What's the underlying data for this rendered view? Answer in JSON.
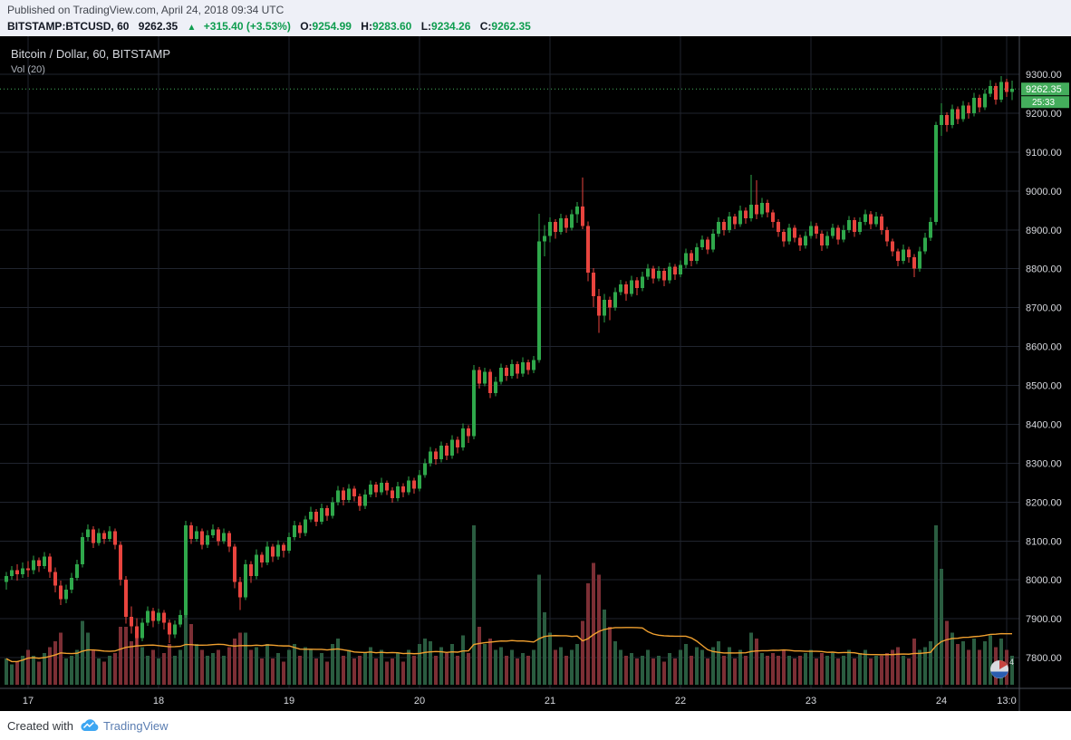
{
  "header": {
    "published": "Published on TradingView.com, April 24, 2018 09:34 UTC",
    "symbol": "BITSTAMP:BTCUSD, 60",
    "last_price": "9262.35",
    "up_arrow": "▲",
    "change": "+315.40 (+3.53%)",
    "ohlc": {
      "o_label": "O:",
      "o_value": "9254.99",
      "h_label": "H:",
      "h_value": "9283.60",
      "l_label": "L:",
      "l_value": "9234.26",
      "c_label": "C:",
      "c_value": "9262.35"
    },
    "colors": {
      "bg": "#eef0f7",
      "text_dark": "#121722",
      "quote_green": "#0e9d4f"
    }
  },
  "chart": {
    "legend_title": "Bitcoin / Dollar, 60, BITSTAMP",
    "vol_label": "Vol (20)",
    "watermark_badge": "4"
  },
  "footer": {
    "created_with": "Created with",
    "brand": "TradingView"
  },
  "chart_data": {
    "type": "candlestick",
    "title": "Bitcoin / Dollar, 60, BITSTAMP",
    "symbol": "BITSTAMP:BTCUSD",
    "interval_minutes": 60,
    "last_price": 9262.35,
    "countdown": "25:33",
    "volume_ma_period": 20,
    "ylim": [
      7721,
      9398
    ],
    "y_ticks": [
      9300,
      9200,
      9100,
      9000,
      8900,
      8800,
      8700,
      8600,
      8500,
      8400,
      8300,
      8200,
      8100,
      8000,
      7900,
      7800
    ],
    "x_ticks": [
      {
        "index": 4,
        "label": "17"
      },
      {
        "index": 28,
        "label": "18"
      },
      {
        "index": 52,
        "label": "19"
      },
      {
        "index": 76,
        "label": "20"
      },
      {
        "index": 100,
        "label": "21"
      },
      {
        "index": 124,
        "label": "22"
      },
      {
        "index": 148,
        "label": "23"
      },
      {
        "index": 172,
        "label": "24"
      },
      {
        "index": 184,
        "label": "13:0"
      }
    ],
    "colors": {
      "bg": "#000000",
      "up": "#2fa84b",
      "down": "#e8443e",
      "vol_up": "#2a5c40",
      "vol_down": "#7c2f35",
      "vol_ma": "#f0a02f",
      "grid": "#20242e",
      "axis_line": "#4a4e59",
      "axis_text": "#d7d9de",
      "price_tag_bg": "#44ad5c",
      "price_tag_text": "#ffffff"
    },
    "candles_format": [
      "open",
      "high",
      "low",
      "close",
      "volume"
    ],
    "candles": [
      [
        7995,
        8020,
        7975,
        8010,
        9
      ],
      [
        8010,
        8035,
        8000,
        8025,
        7
      ],
      [
        8025,
        8040,
        7998,
        8015,
        8
      ],
      [
        8015,
        8045,
        8005,
        8030,
        10
      ],
      [
        8030,
        8048,
        8008,
        8025,
        12
      ],
      [
        8025,
        8062,
        8015,
        8050,
        10
      ],
      [
        8050,
        8058,
        8020,
        8035,
        8
      ],
      [
        8035,
        8072,
        8028,
        8060,
        11
      ],
      [
        8060,
        8068,
        8005,
        8020,
        13
      ],
      [
        8020,
        8032,
        7968,
        7985,
        15
      ],
      [
        7985,
        7998,
        7935,
        7950,
        18
      ],
      [
        7950,
        7988,
        7940,
        7975,
        9
      ],
      [
        7975,
        8018,
        7965,
        8005,
        10
      ],
      [
        8005,
        8052,
        7998,
        8040,
        12
      ],
      [
        8040,
        8122,
        8032,
        8110,
        22
      ],
      [
        8110,
        8142,
        8100,
        8130,
        18
      ],
      [
        8130,
        8138,
        8082,
        8095,
        12
      ],
      [
        8095,
        8132,
        8088,
        8120,
        9
      ],
      [
        8120,
        8128,
        8092,
        8105,
        8
      ],
      [
        8105,
        8138,
        8098,
        8125,
        10
      ],
      [
        8125,
        8132,
        8078,
        8090,
        11
      ],
      [
        8090,
        8098,
        7985,
        8000,
        20
      ],
      [
        8000,
        8010,
        7888,
        7905,
        20
      ],
      [
        7905,
        7932,
        7862,
        7880,
        15
      ],
      [
        7880,
        7902,
        7832,
        7850,
        17
      ],
      [
        7850,
        7902,
        7842,
        7890,
        13
      ],
      [
        7890,
        7932,
        7882,
        7920,
        10
      ],
      [
        7920,
        7928,
        7878,
        7895,
        12
      ],
      [
        7895,
        7926,
        7886,
        7915,
        9
      ],
      [
        7915,
        7922,
        7872,
        7890,
        11
      ],
      [
        7890,
        7898,
        7838,
        7860,
        14
      ],
      [
        7860,
        7896,
        7850,
        7885,
        10
      ],
      [
        7885,
        7922,
        7878,
        7910,
        12
      ],
      [
        7910,
        8152,
        7902,
        8140,
        25
      ],
      [
        8140,
        8148,
        8092,
        8105,
        21
      ],
      [
        8105,
        8138,
        8098,
        8125,
        14
      ],
      [
        8125,
        8132,
        8078,
        8090,
        12
      ],
      [
        8090,
        8128,
        8082,
        8115,
        10
      ],
      [
        8115,
        8142,
        8108,
        8130,
        11
      ],
      [
        8130,
        8136,
        8088,
        8100,
        12
      ],
      [
        8100,
        8132,
        8092,
        8120,
        10
      ],
      [
        8120,
        8126,
        8072,
        8085,
        13
      ],
      [
        8085,
        8092,
        7978,
        7995,
        16
      ],
      [
        7995,
        8008,
        7922,
        7955,
        18
      ],
      [
        7955,
        8052,
        7948,
        8040,
        18
      ],
      [
        8040,
        8048,
        7992,
        8010,
        12
      ],
      [
        8010,
        8078,
        8002,
        8065,
        13
      ],
      [
        8065,
        8072,
        8032,
        8045,
        9
      ],
      [
        8045,
        8098,
        8038,
        8085,
        14
      ],
      [
        8085,
        8092,
        8046,
        8060,
        9
      ],
      [
        8060,
        8102,
        8052,
        8090,
        11
      ],
      [
        8090,
        8096,
        8058,
        8075,
        8
      ],
      [
        8075,
        8122,
        8068,
        8110,
        12
      ],
      [
        8110,
        8152,
        8102,
        8140,
        14
      ],
      [
        8140,
        8148,
        8108,
        8120,
        10
      ],
      [
        8120,
        8165,
        8112,
        8155,
        13
      ],
      [
        8155,
        8188,
        8148,
        8175,
        12
      ],
      [
        8175,
        8182,
        8138,
        8150,
        9
      ],
      [
        8150,
        8196,
        8142,
        8185,
        11
      ],
      [
        8185,
        8192,
        8152,
        8165,
        8
      ],
      [
        8165,
        8212,
        8158,
        8200,
        14
      ],
      [
        8200,
        8242,
        8192,
        8230,
        16
      ],
      [
        8230,
        8238,
        8192,
        8205,
        10
      ],
      [
        8205,
        8246,
        8198,
        8235,
        12
      ],
      [
        8235,
        8242,
        8202,
        8215,
        9
      ],
      [
        8215,
        8222,
        8178,
        8190,
        10
      ],
      [
        8190,
        8232,
        8182,
        8220,
        11
      ],
      [
        8220,
        8256,
        8212,
        8245,
        13
      ],
      [
        8245,
        8252,
        8212,
        8225,
        9
      ],
      [
        8225,
        8262,
        8218,
        8250,
        12
      ],
      [
        8250,
        8256,
        8218,
        8230,
        8
      ],
      [
        8230,
        8238,
        8198,
        8210,
        9
      ],
      [
        8210,
        8252,
        8202,
        8240,
        11
      ],
      [
        8240,
        8248,
        8212,
        8225,
        8
      ],
      [
        8225,
        8266,
        8218,
        8255,
        12
      ],
      [
        8255,
        8262,
        8222,
        8235,
        10
      ],
      [
        8235,
        8282,
        8228,
        8270,
        14
      ],
      [
        8270,
        8312,
        8262,
        8300,
        16
      ],
      [
        8300,
        8342,
        8292,
        8330,
        15
      ],
      [
        8330,
        8338,
        8296,
        8310,
        10
      ],
      [
        8310,
        8356,
        8302,
        8345,
        13
      ],
      [
        8345,
        8352,
        8308,
        8320,
        11
      ],
      [
        8320,
        8372,
        8312,
        8360,
        14
      ],
      [
        8360,
        8368,
        8326,
        8340,
        10
      ],
      [
        8340,
        8402,
        8332,
        8390,
        17
      ],
      [
        8390,
        8398,
        8352,
        8370,
        11
      ],
      [
        8370,
        8552,
        8362,
        8540,
        55
      ],
      [
        8540,
        8548,
        8492,
        8505,
        20
      ],
      [
        8505,
        8546,
        8498,
        8535,
        14
      ],
      [
        8535,
        8542,
        8468,
        8480,
        16
      ],
      [
        8480,
        8522,
        8472,
        8510,
        12
      ],
      [
        8510,
        8556,
        8502,
        8545,
        13
      ],
      [
        8545,
        8552,
        8512,
        8525,
        10
      ],
      [
        8525,
        8566,
        8518,
        8555,
        12
      ],
      [
        8555,
        8562,
        8518,
        8530,
        9
      ],
      [
        8530,
        8572,
        8522,
        8560,
        11
      ],
      [
        8560,
        8566,
        8528,
        8540,
        10
      ],
      [
        8540,
        8576,
        8532,
        8565,
        12
      ],
      [
        8565,
        8942,
        8558,
        8870,
        38
      ],
      [
        8870,
        8912,
        8832,
        8885,
        25
      ],
      [
        8885,
        8932,
        8868,
        8920,
        18
      ],
      [
        8920,
        8928,
        8878,
        8895,
        12
      ],
      [
        8895,
        8942,
        8888,
        8930,
        13
      ],
      [
        8930,
        8938,
        8892,
        8905,
        10
      ],
      [
        8905,
        8952,
        8898,
        8940,
        12
      ],
      [
        8940,
        8972,
        8918,
        8960,
        14
      ],
      [
        8960,
        9035,
        8902,
        8910,
        22
      ],
      [
        8910,
        8922,
        8768,
        8790,
        35
      ],
      [
        8790,
        8802,
        8702,
        8730,
        42
      ],
      [
        8730,
        8748,
        8635,
        8680,
        38
      ],
      [
        8680,
        8735,
        8662,
        8720,
        26
      ],
      [
        8720,
        8728,
        8668,
        8700,
        20
      ],
      [
        8700,
        8752,
        8692,
        8740,
        15
      ],
      [
        8740,
        8772,
        8732,
        8760,
        12
      ],
      [
        8760,
        8768,
        8718,
        8735,
        10
      ],
      [
        8735,
        8782,
        8728,
        8770,
        11
      ],
      [
        8770,
        8778,
        8732,
        8750,
        9
      ],
      [
        8750,
        8792,
        8742,
        8780,
        10
      ],
      [
        8780,
        8812,
        8772,
        8800,
        12
      ],
      [
        8800,
        8808,
        8762,
        8775,
        9
      ],
      [
        8775,
        8806,
        8768,
        8795,
        10
      ],
      [
        8795,
        8802,
        8755,
        8770,
        8
      ],
      [
        8770,
        8816,
        8762,
        8805,
        11
      ],
      [
        8805,
        8812,
        8772,
        8785,
        9
      ],
      [
        8785,
        8822,
        8778,
        8810,
        12
      ],
      [
        8810,
        8852,
        8802,
        8840,
        14
      ],
      [
        8840,
        8848,
        8806,
        8820,
        10
      ],
      [
        8820,
        8866,
        8812,
        8855,
        13
      ],
      [
        8855,
        8886,
        8848,
        8875,
        12
      ],
      [
        8875,
        8882,
        8838,
        8850,
        9
      ],
      [
        8850,
        8902,
        8842,
        8890,
        13
      ],
      [
        8890,
        8932,
        8882,
        8920,
        15
      ],
      [
        8920,
        8928,
        8886,
        8900,
        10
      ],
      [
        8900,
        8946,
        8892,
        8935,
        13
      ],
      [
        8935,
        8942,
        8902,
        8915,
        9
      ],
      [
        8915,
        8962,
        8908,
        8950,
        12
      ],
      [
        8950,
        8958,
        8916,
        8930,
        10
      ],
      [
        8930,
        9042,
        8922,
        8965,
        18
      ],
      [
        8965,
        9028,
        8928,
        8940,
        16
      ],
      [
        8940,
        8982,
        8932,
        8970,
        11
      ],
      [
        8970,
        8978,
        8932,
        8945,
        10
      ],
      [
        8945,
        8952,
        8905,
        8920,
        11
      ],
      [
        8920,
        8928,
        8882,
        8895,
        10
      ],
      [
        8895,
        8902,
        8856,
        8870,
        12
      ],
      [
        8870,
        8916,
        8862,
        8905,
        10
      ],
      [
        8905,
        8912,
        8868,
        8880,
        9
      ],
      [
        8880,
        8888,
        8846,
        8860,
        10
      ],
      [
        8860,
        8896,
        8852,
        8885,
        11
      ],
      [
        8885,
        8922,
        8878,
        8910,
        12
      ],
      [
        8910,
        8918,
        8878,
        8890,
        9
      ],
      [
        8890,
        8898,
        8846,
        8860,
        11
      ],
      [
        8860,
        8896,
        8852,
        8885,
        10
      ],
      [
        8885,
        8916,
        8878,
        8905,
        11
      ],
      [
        8905,
        8912,
        8862,
        8875,
        9
      ],
      [
        8875,
        8912,
        8868,
        8900,
        10
      ],
      [
        8900,
        8936,
        8892,
        8925,
        12
      ],
      [
        8925,
        8932,
        8882,
        8895,
        9
      ],
      [
        8895,
        8932,
        8888,
        8920,
        11
      ],
      [
        8920,
        8952,
        8912,
        8940,
        12
      ],
      [
        8940,
        8948,
        8902,
        8915,
        9
      ],
      [
        8915,
        8946,
        8908,
        8935,
        10
      ],
      [
        8935,
        8942,
        8888,
        8900,
        10
      ],
      [
        8900,
        8908,
        8858,
        8870,
        11
      ],
      [
        8870,
        8878,
        8832,
        8845,
        12
      ],
      [
        8845,
        8852,
        8806,
        8820,
        13
      ],
      [
        8820,
        8862,
        8812,
        8850,
        10
      ],
      [
        8850,
        8856,
        8816,
        8830,
        9
      ],
      [
        8830,
        8838,
        8778,
        8800,
        16
      ],
      [
        8800,
        8856,
        8792,
        8845,
        12
      ],
      [
        8845,
        8892,
        8838,
        8880,
        13
      ],
      [
        8880,
        8932,
        8872,
        8920,
        15
      ],
      [
        8920,
        9178,
        8912,
        9170,
        55
      ],
      [
        9170,
        9226,
        9142,
        9195,
        40
      ],
      [
        9195,
        9202,
        9152,
        9170,
        22
      ],
      [
        9170,
        9222,
        9162,
        9210,
        18
      ],
      [
        9210,
        9218,
        9172,
        9185,
        14
      ],
      [
        9185,
        9232,
        9178,
        9220,
        15
      ],
      [
        9220,
        9228,
        9186,
        9200,
        12
      ],
      [
        9200,
        9252,
        9192,
        9240,
        16
      ],
      [
        9240,
        9248,
        9202,
        9215,
        12
      ],
      [
        9215,
        9262,
        9208,
        9250,
        15
      ],
      [
        9250,
        9285,
        9242,
        9270,
        17
      ],
      [
        9270,
        9278,
        9222,
        9235,
        13
      ],
      [
        9235,
        9295,
        9228,
        9280,
        16
      ],
      [
        9280,
        9288,
        9242,
        9255,
        12
      ],
      [
        9254.99,
        9283.6,
        9234.26,
        9262.35,
        10
      ]
    ]
  }
}
